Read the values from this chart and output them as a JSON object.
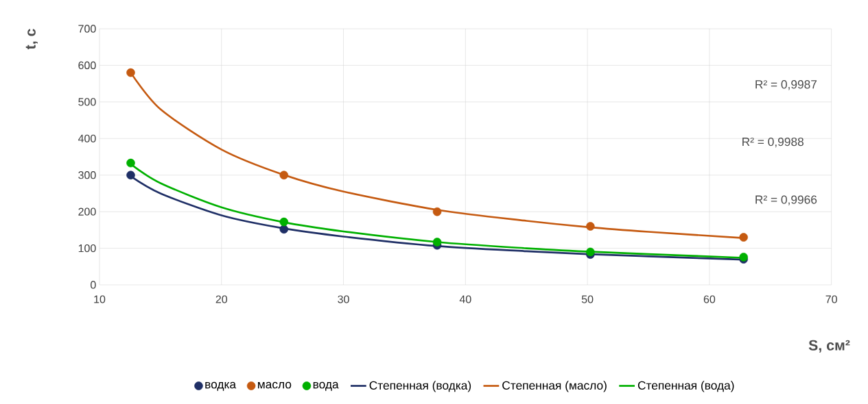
{
  "chart_data": {
    "type": "scatter",
    "xlabel": "S, см²",
    "ylabel": "t, с",
    "xlim": [
      10,
      70
    ],
    "xticks": [
      10,
      20,
      30,
      40,
      50,
      60,
      70
    ],
    "ylim": [
      0,
      700
    ],
    "yticks": [
      0,
      100,
      200,
      300,
      400,
      500,
      600,
      700
    ],
    "grid": true,
    "legend": "bottom",
    "series": [
      {
        "name": "водка",
        "marker": "circle",
        "color": "#1f2f66",
        "x": [
          12.56,
          25.12,
          37.68,
          50.24,
          62.8
        ],
        "values": [
          300,
          152,
          108,
          83,
          70
        ]
      },
      {
        "name": "масло",
        "marker": "circle",
        "color": "#c55a11",
        "x": [
          12.56,
          25.12,
          37.68,
          50.24,
          62.8
        ],
        "values": [
          580,
          300,
          200,
          160,
          130
        ]
      },
      {
        "name": "вода",
        "marker": "circle",
        "color": "#00b000",
        "x": [
          12.56,
          25.12,
          37.68,
          50.24,
          62.8
        ],
        "values": [
          333,
          172,
          117,
          90,
          76
        ]
      },
      {
        "name": "Степенная (водка)",
        "type": "line",
        "marker": "none",
        "color": "#1f2f66",
        "x": [
          12.56,
          15,
          20,
          25,
          30,
          37.7,
          45,
          50,
          55,
          62.8
        ],
        "values": [
          297,
          250,
          190,
          155,
          132,
          106,
          92,
          84,
          78,
          69
        ]
      },
      {
        "name": "Степенная (масло)",
        "type": "line",
        "marker": "none",
        "color": "#c55a11",
        "x": [
          12.56,
          15,
          20,
          25,
          30,
          37.7,
          45,
          50,
          55,
          62.8
        ],
        "values": [
          580,
          480,
          370,
          302,
          255,
          205,
          175,
          158,
          145,
          128
        ]
      },
      {
        "name": "Степенная (вода)",
        "type": "line",
        "marker": "none",
        "color": "#00b000",
        "x": [
          12.56,
          15,
          20,
          25,
          30,
          37.7,
          45,
          50,
          55,
          62.8
        ],
        "values": [
          330,
          278,
          212,
          172,
          146,
          117,
          100,
          91,
          84,
          74
        ]
      }
    ],
    "annotations": [
      "R² = 0,9987",
      "R² = 0,9988",
      "R² = 0,9966"
    ]
  }
}
